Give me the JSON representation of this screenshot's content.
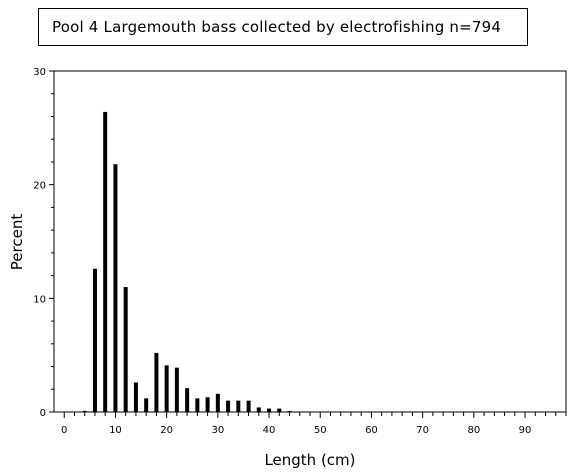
{
  "chart_data": {
    "type": "bar",
    "title": "Pool 4 Largemouth bass collected by electrofishing n=794",
    "xlabel": "Length (cm)",
    "ylabel": "Percent",
    "xlim": [
      -2,
      98
    ],
    "ylim": [
      0,
      30
    ],
    "x_ticks": [
      0,
      10,
      20,
      30,
      40,
      50,
      60,
      70,
      80,
      90
    ],
    "y_ticks": [
      0,
      10,
      20,
      30
    ],
    "x_minor_step": 2,
    "y_minor_step": 2,
    "bar_color": "#000000",
    "x": [
      4,
      6,
      8,
      10,
      12,
      14,
      16,
      18,
      20,
      22,
      24,
      26,
      28,
      30,
      32,
      34,
      36,
      38,
      40,
      42,
      44
    ],
    "values": [
      0.1,
      12.6,
      26.4,
      21.8,
      11.0,
      2.6,
      1.2,
      5.2,
      4.1,
      3.9,
      2.1,
      1.2,
      1.3,
      1.6,
      1.0,
      1.0,
      1.0,
      0.4,
      0.3,
      0.3,
      0.1
    ]
  }
}
